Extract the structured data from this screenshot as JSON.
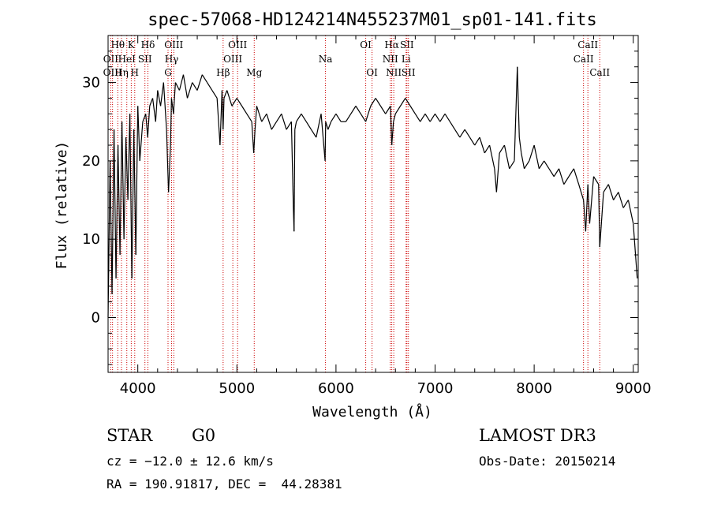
{
  "chart_data": {
    "type": "line",
    "title": "spec-57068-HD124214N455237M01_sp01-141.fits",
    "xlabel": "Wavelength (Å)",
    "ylabel": "Flux (relative)",
    "xlim": [
      3700,
      9050
    ],
    "ylim": [
      -7,
      36
    ],
    "xticks": [
      4000,
      5000,
      6000,
      7000,
      8000,
      9000
    ],
    "yticks": [
      0,
      10,
      20,
      30
    ],
    "series": [
      {
        "name": "spectrum",
        "x": [
          3700,
          3720,
          3740,
          3760,
          3780,
          3800,
          3820,
          3840,
          3860,
          3880,
          3900,
          3920,
          3940,
          3960,
          3980,
          4000,
          4020,
          4050,
          4080,
          4100,
          4120,
          4150,
          4180,
          4200,
          4230,
          4260,
          4290,
          4310,
          4330,
          4340,
          4360,
          4380,
          4420,
          4460,
          4500,
          4550,
          4600,
          4650,
          4700,
          4750,
          4800,
          4830,
          4850,
          4861,
          4870,
          4900,
          4950,
          5000,
          5050,
          5100,
          5150,
          5170,
          5183,
          5200,
          5250,
          5300,
          5350,
          5400,
          5450,
          5500,
          5550,
          5570,
          5577,
          5585,
          5600,
          5650,
          5700,
          5750,
          5800,
          5850,
          5890,
          5896,
          5920,
          5950,
          6000,
          6050,
          6100,
          6150,
          6200,
          6250,
          6300,
          6350,
          6400,
          6450,
          6500,
          6550,
          6563,
          6580,
          6600,
          6650,
          6700,
          6750,
          6800,
          6850,
          6900,
          6950,
          7000,
          7050,
          7100,
          7150,
          7200,
          7250,
          7300,
          7350,
          7400,
          7450,
          7500,
          7550,
          7600,
          7620,
          7650,
          7700,
          7750,
          7800,
          7830,
          7850,
          7870,
          7900,
          7950,
          8000,
          8050,
          8100,
          8150,
          8200,
          8250,
          8300,
          8350,
          8400,
          8450,
          8498,
          8520,
          8542,
          8560,
          8600,
          8650,
          8662,
          8700,
          8750,
          8800,
          8850,
          8900,
          8950,
          9000,
          9040
        ],
        "values": [
          0,
          20,
          3,
          24,
          5,
          22,
          8,
          25,
          10,
          23,
          15,
          26,
          5,
          24,
          8,
          27,
          20,
          25,
          26,
          23,
          27,
          28,
          25,
          29,
          27,
          30,
          24,
          16,
          22,
          28,
          26,
          30,
          29,
          31,
          28,
          30,
          29,
          31,
          30,
          29,
          28,
          22,
          29,
          24,
          28,
          29,
          27,
          28,
          27,
          26,
          25,
          21,
          24,
          27,
          25,
          26,
          24,
          25,
          26,
          24,
          25,
          14,
          11,
          24,
          25,
          26,
          25,
          24,
          23,
          26,
          20,
          25,
          24,
          25,
          26,
          25,
          25,
          26,
          27,
          26,
          25,
          27,
          28,
          27,
          26,
          27,
          22,
          25,
          26,
          27,
          28,
          27,
          26,
          25,
          26,
          25,
          26,
          25,
          26,
          25,
          24,
          23,
          24,
          23,
          22,
          23,
          21,
          22,
          19,
          16,
          21,
          22,
          19,
          20,
          32,
          23,
          21,
          19,
          20,
          22,
          19,
          20,
          19,
          18,
          19,
          17,
          18,
          19,
          17,
          15,
          11,
          17,
          12,
          18,
          17,
          9,
          16,
          17,
          15,
          16,
          14,
          15,
          12,
          5
        ]
      }
    ],
    "emission_lines": [
      {
        "label": "OII",
        "wave": 3727,
        "row": 1
      },
      {
        "label": "Hθ",
        "wave": 3798,
        "row": 0
      },
      {
        "label": "OIII",
        "wave": 3745,
        "row": 2
      },
      {
        "label": "HeI",
        "wave": 3889,
        "row": 1
      },
      {
        "label": "Hη",
        "wave": 3835,
        "row": 2
      },
      {
        "label": "K",
        "wave": 3934,
        "row": 0
      },
      {
        "label": "H",
        "wave": 3969,
        "row": 2
      },
      {
        "label": "SII",
        "wave": 4072,
        "row": 1
      },
      {
        "label": "Hδ",
        "wave": 4102,
        "row": 0
      },
      {
        "label": "OIII",
        "wave": 4363,
        "row": 0
      },
      {
        "label": "Hγ",
        "wave": 4341,
        "row": 1
      },
      {
        "label": "G",
        "wave": 4305,
        "row": 2
      },
      {
        "label": "Hβ",
        "wave": 4861,
        "row": 2
      },
      {
        "label": "OIII",
        "wave": 5007,
        "row": 0
      },
      {
        "label": "OIII",
        "wave": 4959,
        "row": 1
      },
      {
        "label": "Mg",
        "wave": 5175,
        "row": 2
      },
      {
        "label": "Na",
        "wave": 5894,
        "row": 1
      },
      {
        "label": "OI",
        "wave": 6300,
        "row": 0
      },
      {
        "label": "OI",
        "wave": 6364,
        "row": 2
      },
      {
        "label": "Hα",
        "wave": 6563,
        "row": 0
      },
      {
        "label": "NII",
        "wave": 6548,
        "row": 1
      },
      {
        "label": "NII",
        "wave": 6583,
        "row": 2
      },
      {
        "label": "SII",
        "wave": 6716,
        "row": 0
      },
      {
        "label": "Li",
        "wave": 6708,
        "row": 1
      },
      {
        "label": "SII",
        "wave": 6731,
        "row": 2
      },
      {
        "label": "CaII",
        "wave": 8542,
        "row": 0
      },
      {
        "label": "CaII",
        "wave": 8498,
        "row": 1
      },
      {
        "label": "CaII",
        "wave": 8662,
        "row": 2
      }
    ]
  },
  "info": {
    "class": "STAR",
    "subclass": "G0",
    "survey": "LAMOST DR3",
    "cz": "cz = −12.0 ± 12.6 km/s",
    "obs_date": "Obs-Date: 20150214",
    "coords": "RA = 190.91817, DEC =  44.28381"
  },
  "colors": {
    "line_marker": "#cc0000",
    "spectrum": "#000000"
  }
}
